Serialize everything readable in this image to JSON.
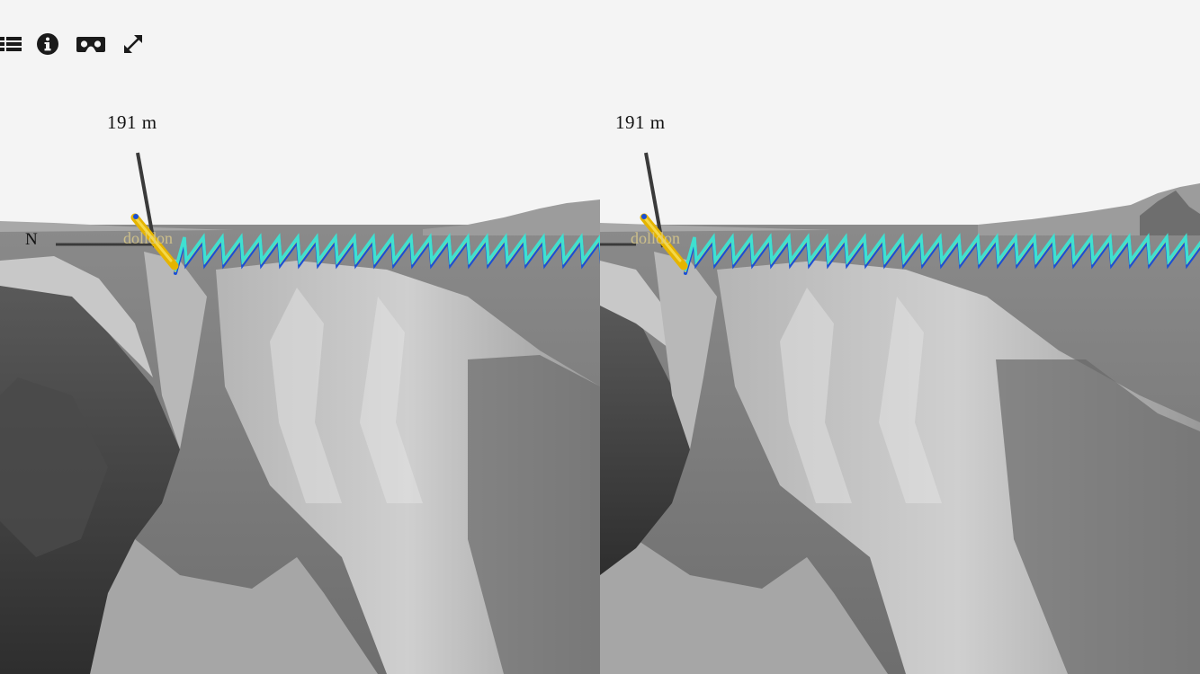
{
  "toolbar": {
    "layers_icon": "list-icon",
    "info_icon": "info-icon",
    "vr_icon": "vr-headset-icon",
    "fullscreen_icon": "fullscreen-icon"
  },
  "views": {
    "left": {
      "scale_label": "191 m",
      "north_label": "N",
      "track_label": "dolldon"
    },
    "right": {
      "scale_label": "191 m",
      "north_label": "",
      "track_label": "dolldon"
    }
  },
  "colors": {
    "background": "#f4f4f4",
    "terrain_light": "#bdbdbd",
    "terrain_dark": "#3a3a3a",
    "track_cyan": "#3fe0d0",
    "track_blue": "#1a4fd6",
    "track_yellow": "#e8d040",
    "vehicle": "#e5b400"
  }
}
